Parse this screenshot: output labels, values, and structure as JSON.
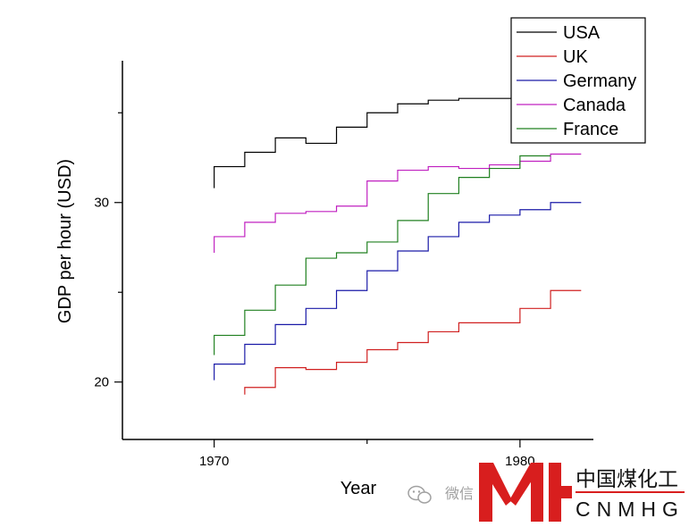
{
  "chart_data": {
    "type": "line",
    "step": true,
    "xlabel": "Year",
    "ylabel": "GDP per hour (USD)",
    "xlim": [
      1967,
      1982.4
    ],
    "ylim": [
      16.8,
      37.9
    ],
    "xticks": [
      1970,
      1980
    ],
    "xtick_labels": [
      "1970",
      "1980"
    ],
    "yticks": [
      20,
      30
    ],
    "ytick_labels": [
      "20",
      "30"
    ],
    "grid": false,
    "legend_position": "top-right",
    "series": [
      {
        "name": "USA",
        "color": "#000000",
        "x": [
          1970,
          1971,
          1972,
          1973,
          1974,
          1975,
          1976,
          1977,
          1978,
          1979,
          1980
        ],
        "y": [
          30.8,
          32.0,
          32.8,
          33.6,
          33.3,
          34.2,
          35.0,
          35.5,
          35.7,
          35.8,
          35.8
        ]
      },
      {
        "name": "UK",
        "color": "#d02020",
        "x": [
          1971,
          1972,
          1973,
          1974,
          1975,
          1976,
          1977,
          1978,
          1979,
          1980,
          1981,
          1982
        ],
        "y": [
          19.3,
          19.7,
          20.8,
          20.7,
          21.1,
          21.8,
          22.2,
          22.8,
          23.3,
          23.3,
          24.1,
          25.1
        ]
      },
      {
        "name": "Germany",
        "color": "#1a1aa8",
        "x": [
          1970,
          1971,
          1972,
          1973,
          1974,
          1975,
          1976,
          1977,
          1978,
          1979,
          1980,
          1981,
          1982
        ],
        "y": [
          20.1,
          21.0,
          22.1,
          23.2,
          24.1,
          25.1,
          26.2,
          27.3,
          28.1,
          28.9,
          29.3,
          29.6,
          30.0
        ]
      },
      {
        "name": "Canada",
        "color": "#c020c0",
        "x": [
          1970,
          1971,
          1972,
          1973,
          1974,
          1975,
          1976,
          1977,
          1978,
          1979,
          1980,
          1981,
          1982
        ],
        "y": [
          27.2,
          28.1,
          28.9,
          29.4,
          29.5,
          29.8,
          31.2,
          31.8,
          32.0,
          31.9,
          32.1,
          32.3,
          32.7
        ]
      },
      {
        "name": "France",
        "color": "#208020",
        "x": [
          1970,
          1971,
          1972,
          1973,
          1974,
          1975,
          1976,
          1977,
          1978,
          1979,
          1980,
          1981
        ],
        "y": [
          21.5,
          22.6,
          24.0,
          25.4,
          26.9,
          27.2,
          27.8,
          29.0,
          30.5,
          31.4,
          31.9,
          32.6
        ]
      }
    ]
  },
  "watermark": {
    "wechat_icon": "wechat-icon",
    "text": "微信"
  },
  "logo": {
    "glyph": "MH",
    "text_cn": "中国煤化工",
    "text_en": "CNMHG",
    "color": "#d81e1e"
  }
}
